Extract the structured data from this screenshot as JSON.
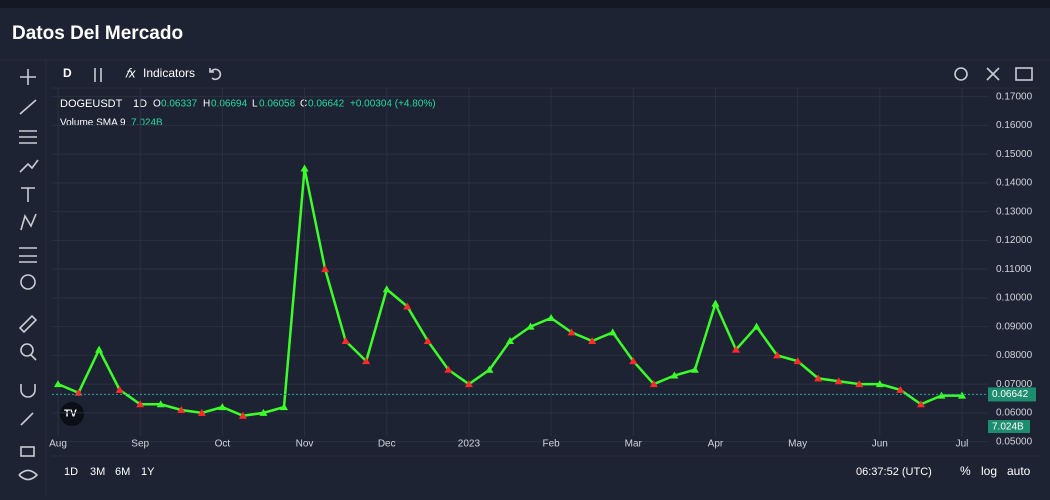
{
  "page": {
    "title": "Datos Del Mercado",
    "toolbar": {
      "interval": "D",
      "indicators": "Indicators"
    },
    "legend": {
      "symbol": "DOGEUSDT",
      "interval": "1D",
      "o_label": "O",
      "o": "0.06337",
      "h_label": "H",
      "h": "0.06694",
      "l_label": "L",
      "l": "0.06058",
      "c_label": "C",
      "c": "0.06642",
      "change": "+0.00304 (+4.80%)",
      "volume_name": "Volume SMA 9",
      "volume_value": "7.024B"
    },
    "ranges": [
      "1D",
      "3M",
      "6M",
      "1Y"
    ],
    "time": "06:37:52 (UTC)",
    "options": [
      "%",
      "log",
      "auto"
    ]
  },
  "chart_data": {
    "type": "line",
    "color": "#3dff2a",
    "categories": [
      "Aug",
      null,
      null,
      null,
      "Sep",
      null,
      null,
      null,
      "Oct",
      null,
      null,
      null,
      "Nov",
      null,
      null,
      null,
      "Dec",
      null,
      null,
      null,
      "2023",
      null,
      null,
      null,
      "Feb",
      null,
      null,
      null,
      "Mar",
      null,
      null,
      null,
      "Apr",
      null,
      null,
      null,
      "May",
      null,
      null,
      null,
      "Jun",
      null,
      null,
      null,
      "Jul"
    ],
    "series": [
      {
        "name": "DOGEUSDT",
        "color": "#3dff2a",
        "values": [
          0.07,
          0.067,
          0.082,
          0.068,
          0.063,
          0.063,
          0.061,
          0.06,
          0.062,
          0.059,
          0.06,
          0.062,
          0.145,
          0.11,
          0.085,
          0.078,
          0.103,
          0.097,
          0.085,
          0.075,
          0.07,
          0.075,
          0.085,
          0.09,
          0.093,
          0.088,
          0.085,
          0.088,
          0.078,
          0.07,
          0.073,
          0.075,
          0.098,
          0.082,
          0.09,
          0.08,
          0.078,
          0.072,
          0.071,
          0.07,
          0.07,
          0.068,
          0.063,
          0.066,
          0.066
        ]
      }
    ],
    "last_price": 0.06642,
    "ylim": [
      0.045,
      0.173
    ],
    "yticks": [
      {
        "value": 0.17,
        "label": "0.17000"
      },
      {
        "value": 0.16,
        "label": "0.16000"
      },
      {
        "value": 0.15,
        "label": "0.15000"
      },
      {
        "value": 0.14,
        "label": "0.14000"
      },
      {
        "value": 0.13,
        "label": "0.13000"
      },
      {
        "value": 0.12,
        "label": "0.12000"
      },
      {
        "value": 0.11,
        "label": "0.11000"
      },
      {
        "value": 0.1,
        "label": "0.10000"
      },
      {
        "value": 0.09,
        "label": "0.09000"
      },
      {
        "value": 0.08,
        "label": "0.08000"
      },
      {
        "value": 0.07,
        "label": "0.07000"
      },
      {
        "value": 0.06,
        "label": "0.06000"
      },
      {
        "value": 0.05,
        "label": "0.05000"
      }
    ],
    "grid": true
  }
}
